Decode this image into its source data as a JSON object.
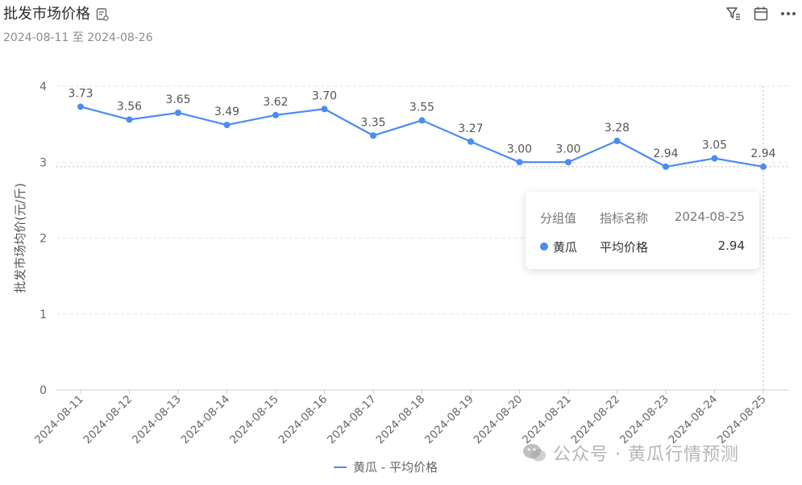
{
  "header": {
    "title": "批发市场价格",
    "date_range": "2024-08-11 至 2024-08-26"
  },
  "toolbar": {
    "icons": [
      "filter-icon",
      "calendar-icon",
      "more-icon"
    ]
  },
  "chart_data": {
    "type": "line",
    "ylabel": "批发市场均价(元/斤)",
    "ylim": [
      0,
      4
    ],
    "yticks": [
      0,
      1,
      2,
      3,
      4
    ],
    "grid": true,
    "categories": [
      "2024-08-11",
      "2024-08-12",
      "2024-08-13",
      "2024-08-14",
      "2024-08-15",
      "2024-08-16",
      "2024-08-17",
      "2024-08-18",
      "2024-08-19",
      "2024-08-20",
      "2024-08-21",
      "2024-08-22",
      "2024-08-23",
      "2024-08-24",
      "2024-08-25"
    ],
    "series": [
      {
        "name": "黄瓜 - 平均价格",
        "color": "#4b8bf4",
        "values": [
          3.73,
          3.56,
          3.65,
          3.49,
          3.62,
          3.7,
          3.35,
          3.55,
          3.27,
          3.0,
          3.0,
          3.28,
          2.94,
          3.05,
          2.94
        ],
        "labels": [
          "3.73",
          "3.56",
          "3.65",
          "3.49",
          "3.62",
          "3.70",
          "3.35",
          "3.55",
          "3.27",
          "3.00",
          "3.00",
          "3.28",
          "2.94",
          "3.05",
          "2.94"
        ]
      }
    ],
    "legend": "bottom-center",
    "crosshair_category": "2024-08-25"
  },
  "tooltip": {
    "head_group": "分组值",
    "head_metric": "指标名称",
    "head_date": "2024-08-25",
    "row_group": "黄瓜",
    "row_metric": "平均价格",
    "row_value": "2.94"
  },
  "legend": {
    "label": "黄瓜 - 平均价格"
  },
  "watermark": {
    "text": "公众号 · 黄瓜行情预测"
  }
}
